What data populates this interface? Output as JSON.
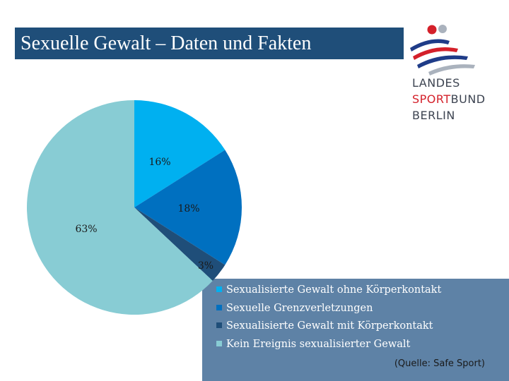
{
  "header": {
    "title": "Sexuelle Gewalt – Daten und Fakten"
  },
  "logo": {
    "line1": "LANDES",
    "line2_a": "SPORT",
    "line2_b": "BUND",
    "line3": "BERLIN"
  },
  "chart_data": {
    "type": "pie",
    "title": "",
    "categories": [
      "Sexualisierte Gewalt ohne Körperkontakt",
      "Sexuelle Grenzverletzungen",
      "Sexualisierte Gewalt mit Körperkontakt",
      "Kein Ereignis sexualisierter Gewalt"
    ],
    "values": [
      16,
      18,
      3,
      63
    ],
    "labels": [
      "16%",
      "18%",
      "3%",
      "63%"
    ],
    "colors": [
      "#00b0f0",
      "#0070c0",
      "#1f4e79",
      "#88ccd4"
    ],
    "legend_position": "bottom-right"
  },
  "source": "(Quelle: Safe Sport)"
}
